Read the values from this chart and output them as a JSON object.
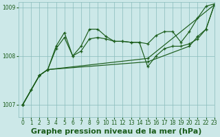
{
  "background_color": "#cce8e8",
  "plot_bg_color": "#cce8e8",
  "grid_color": "#88bbbb",
  "line_color": "#1a5c1a",
  "title": "Graphe pression niveau de la mer (hPa)",
  "xlim": [
    -0.5,
    23
  ],
  "ylim": [
    1006.75,
    1009.1
  ],
  "yticks": [
    1007,
    1008,
    1009
  ],
  "xticks": [
    0,
    1,
    2,
    3,
    4,
    5,
    6,
    7,
    8,
    9,
    10,
    11,
    12,
    13,
    14,
    15,
    16,
    17,
    18,
    19,
    20,
    21,
    22,
    23
  ],
  "series": [
    {
      "x": [
        0,
        2,
        3,
        15,
        23
      ],
      "y": [
        1007.0,
        1007.6,
        1007.72,
        1007.95,
        1009.05
      ]
    },
    {
      "x": [
        0,
        2,
        3,
        15,
        20,
        21,
        22,
        23
      ],
      "y": [
        1007.0,
        1007.6,
        1007.72,
        1007.88,
        1008.2,
        1008.4,
        1008.55,
        1009.05
      ]
    },
    {
      "x": [
        0,
        1,
        2,
        3,
        4,
        5,
        6,
        7,
        8,
        9,
        10,
        11,
        12,
        13,
        14,
        15,
        16,
        17,
        18,
        19,
        20,
        21,
        22,
        23
      ],
      "y": [
        1007.0,
        1007.3,
        1007.6,
        1007.72,
        1008.15,
        1008.38,
        1008.0,
        1008.1,
        1008.35,
        1008.38,
        1008.35,
        1008.3,
        1008.3,
        1008.28,
        1008.28,
        1007.78,
        1008.0,
        1008.15,
        1008.2,
        1008.2,
        1008.25,
        1008.35,
        1008.55,
        1009.05
      ]
    },
    {
      "x": [
        0,
        1,
        2,
        3,
        4,
        5,
        6,
        7,
        8,
        9,
        10,
        11,
        12,
        13,
        14,
        15,
        16,
        17,
        18,
        19,
        20,
        21,
        22,
        23
      ],
      "y": [
        1007.0,
        1007.3,
        1007.6,
        1007.72,
        1008.2,
        1008.48,
        1008.0,
        1008.2,
        1008.55,
        1008.55,
        1008.4,
        1008.3,
        1008.3,
        1008.28,
        1008.28,
        1008.25,
        1008.42,
        1008.5,
        1008.5,
        1008.28,
        1008.5,
        1008.78,
        1009.02,
        1009.07
      ]
    }
  ],
  "marker": "+",
  "marker_size": 3.5,
  "marker_edge_width": 0.9,
  "line_width": 0.85,
  "title_fontsize": 8,
  "tick_fontsize": 5.5
}
